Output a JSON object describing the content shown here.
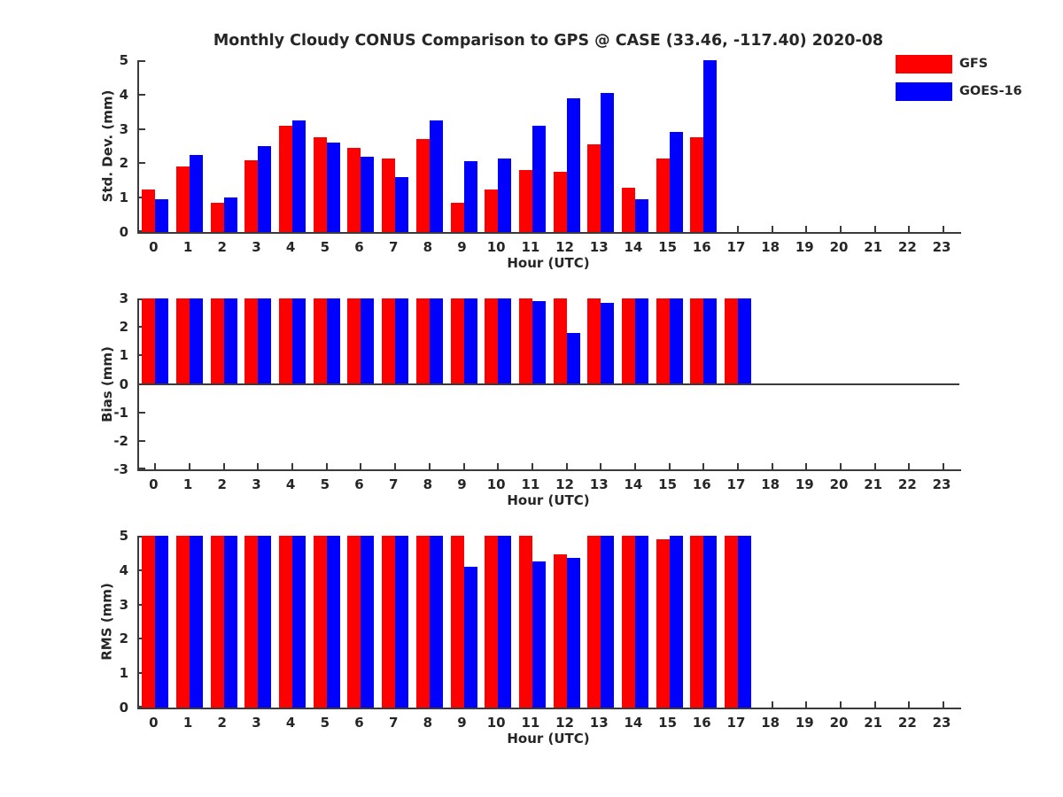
{
  "title": "Monthly Cloudy CONUS Comparison to GPS @ CASE (33.46, -117.40) 2020-08",
  "legend": {
    "position": "top-right",
    "items": [
      {
        "label": "GFS",
        "color": "#ff0000"
      },
      {
        "label": "GOES-16",
        "color": "#0000ff"
      }
    ]
  },
  "colors": {
    "gfs": "#ff0000",
    "goes16": "#0000ff",
    "axis": "#3a3a3a",
    "text": "#262626"
  },
  "chart_data": [
    {
      "type": "bar",
      "title": "",
      "ylabel": "Std. Dev. (mm)",
      "xlabel": "Hour (UTC)",
      "ylim": [
        0,
        5
      ],
      "yticks": [
        0,
        1,
        2,
        3,
        4,
        5
      ],
      "grid": false,
      "categories": [
        0,
        1,
        2,
        3,
        4,
        5,
        6,
        7,
        8,
        9,
        10,
        11,
        12,
        13,
        14,
        15,
        16,
        17,
        18,
        19,
        20,
        21,
        22,
        23
      ],
      "series": [
        {
          "name": "GFS",
          "color": "#ff0000",
          "values": [
            1.25,
            1.9,
            0.85,
            2.1,
            3.1,
            2.75,
            2.45,
            2.15,
            2.7,
            0.85,
            1.25,
            1.8,
            1.75,
            2.55,
            1.3,
            2.15,
            2.75,
            null,
            null,
            null,
            null,
            null,
            null,
            null
          ]
        },
        {
          "name": "GOES-16",
          "color": "#0000ff",
          "values": [
            0.95,
            2.25,
            1.0,
            2.5,
            3.25,
            2.6,
            2.2,
            1.6,
            3.25,
            2.05,
            2.15,
            3.1,
            3.9,
            4.05,
            0.95,
            2.9,
            5.0,
            null,
            null,
            null,
            null,
            null,
            null,
            null
          ]
        }
      ]
    },
    {
      "type": "bar",
      "title": "",
      "ylabel": "Bias (mm)",
      "xlabel": "Hour (UTC)",
      "ylim": [
        -3,
        3
      ],
      "yticks": [
        -3,
        -2,
        -1,
        0,
        1,
        2,
        3
      ],
      "grid": false,
      "categories": [
        0,
        1,
        2,
        3,
        4,
        5,
        6,
        7,
        8,
        9,
        10,
        11,
        12,
        13,
        14,
        15,
        16,
        17,
        18,
        19,
        20,
        21,
        22,
        23
      ],
      "series": [
        {
          "name": "GFS",
          "color": "#ff0000",
          "values": [
            3,
            3,
            3,
            3,
            3,
            3,
            3,
            3,
            3,
            3,
            3,
            3,
            3,
            3,
            3,
            3,
            3,
            3,
            null,
            null,
            null,
            null,
            null,
            null
          ]
        },
        {
          "name": "GOES-16",
          "color": "#0000ff",
          "values": [
            3,
            3,
            3,
            3,
            3,
            3,
            3,
            3,
            3,
            3,
            3,
            2.9,
            1.8,
            2.85,
            3,
            3,
            3,
            3,
            null,
            null,
            null,
            null,
            null,
            null
          ]
        }
      ]
    },
    {
      "type": "bar",
      "title": "",
      "ylabel": "RMS (mm)",
      "xlabel": "Hour (UTC)",
      "ylim": [
        0,
        5
      ],
      "yticks": [
        0,
        1,
        2,
        3,
        4,
        5
      ],
      "grid": false,
      "categories": [
        0,
        1,
        2,
        3,
        4,
        5,
        6,
        7,
        8,
        9,
        10,
        11,
        12,
        13,
        14,
        15,
        16,
        17,
        18,
        19,
        20,
        21,
        22,
        23
      ],
      "series": [
        {
          "name": "GFS",
          "color": "#ff0000",
          "values": [
            5,
            5,
            5,
            5,
            5,
            5,
            5,
            5,
            5,
            5,
            5,
            5,
            4.45,
            5,
            5,
            4.9,
            5,
            5,
            null,
            null,
            null,
            null,
            null,
            null
          ]
        },
        {
          "name": "GOES-16",
          "color": "#0000ff",
          "values": [
            5,
            5,
            5,
            5,
            5,
            5,
            5,
            5,
            5,
            4.1,
            5,
            4.25,
            4.35,
            5,
            5,
            5,
            5,
            5,
            null,
            null,
            null,
            null,
            null,
            null
          ]
        }
      ]
    }
  ]
}
